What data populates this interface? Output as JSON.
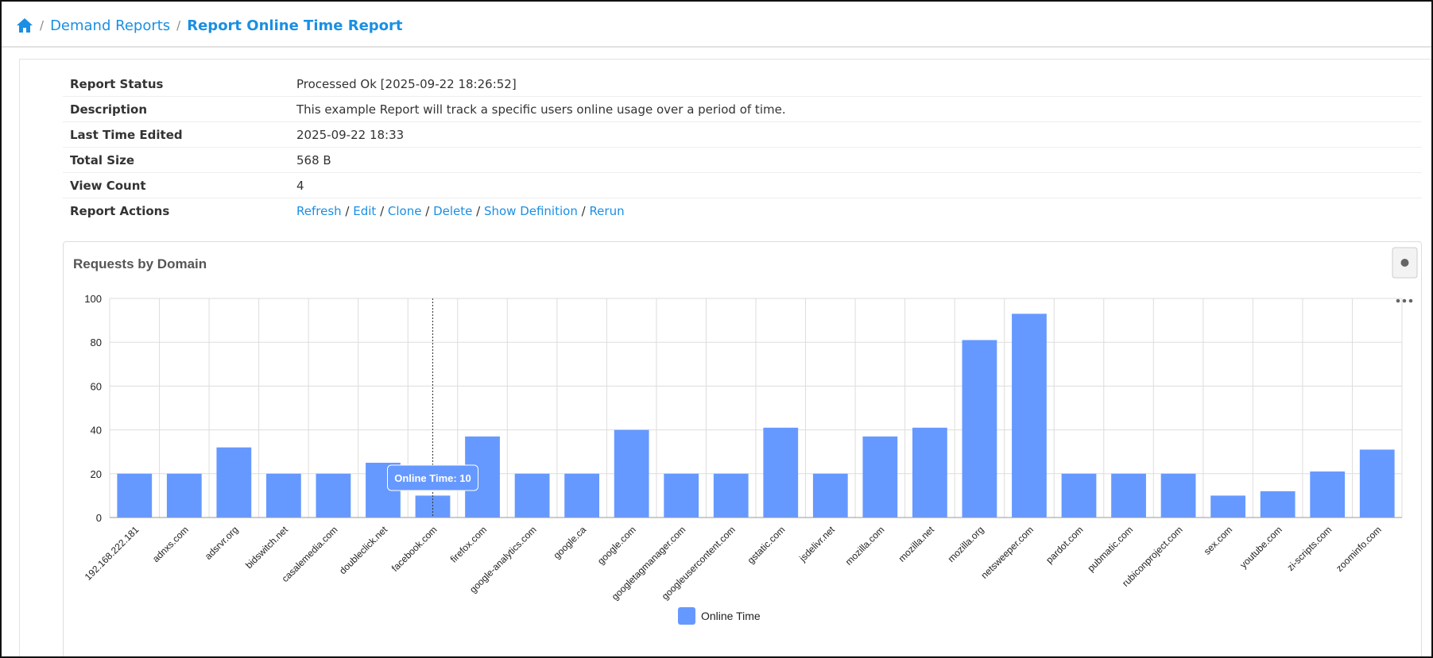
{
  "breadcrumb": {
    "items": [
      "Demand Reports",
      "Report Online Time Report"
    ]
  },
  "info": {
    "rows": [
      {
        "label": "Report Status",
        "value": "Processed Ok [2025-09-22 18:26:52]"
      },
      {
        "label": "Description",
        "value": "This example Report will track a specific users online usage over a period of time."
      },
      {
        "label": "Last Time Edited",
        "value": "2025-09-22 18:33"
      },
      {
        "label": "Total Size",
        "value": "568 B"
      },
      {
        "label": "View Count",
        "value": "4"
      }
    ],
    "actions": {
      "label": "Report Actions",
      "links": [
        "Refresh",
        "Edit",
        "Clone",
        "Delete",
        "Show Definition",
        "Rerun"
      ]
    }
  },
  "chart_data": {
    "type": "bar",
    "title": "Requests by Domain",
    "categories": [
      "192.168.222.181",
      "adnxs.com",
      "adsrvr.org",
      "bidswitch.net",
      "casalemedia.com",
      "doubleclick.net",
      "facebook.com",
      "firefox.com",
      "google-analytics.com",
      "google.ca",
      "google.com",
      "googletagmanager.com",
      "googleusercontent.com",
      "gstatic.com",
      "jsdelivr.net",
      "mozilla.com",
      "mozilla.net",
      "mozilla.org",
      "netsweeper.com",
      "pardot.com",
      "pubmatic.com",
      "rubiconproject.com",
      "sex.com",
      "youtube.com",
      "zi-scripts.com",
      "zoominfo.com"
    ],
    "series": [
      {
        "name": "Online Time",
        "color": "#6699ff",
        "values": [
          20,
          20,
          32,
          20,
          20,
          25,
          10,
          37,
          20,
          20,
          40,
          20,
          20,
          41,
          20,
          37,
          41,
          81,
          93,
          20,
          20,
          20,
          10,
          12,
          21,
          31
        ]
      }
    ],
    "ylim": [
      0,
      100
    ],
    "yticks": [
      0,
      20,
      40,
      60,
      80,
      100
    ],
    "grid": true,
    "tooltip": {
      "text": "Online Time: 10",
      "category": 6
    }
  }
}
